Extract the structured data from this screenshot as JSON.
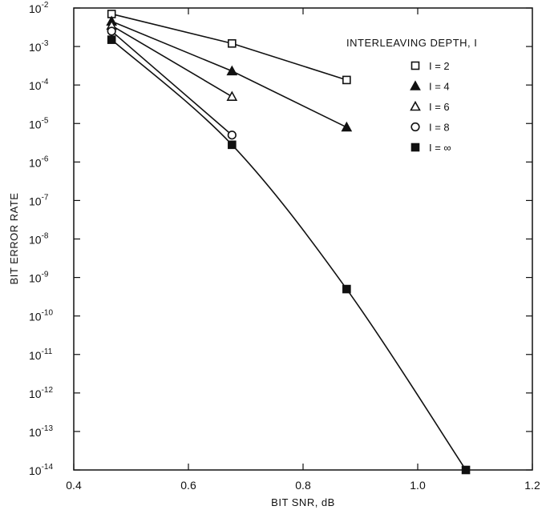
{
  "chart_data": {
    "type": "line",
    "xlabel": "BIT SNR, dB",
    "ylabel": "BIT ERROR RATE",
    "xlim": [
      0.4,
      1.2
    ],
    "ylim_exponent": [
      -14,
      -2
    ],
    "y_scale": "log",
    "grid": false,
    "legend": {
      "title": "INTERLEAVING DEPTH, I",
      "placement": "top-right"
    },
    "x_ticks": [
      "0.4",
      "0.6",
      "0.8",
      "1.0",
      "1.2"
    ],
    "x_tick_values": [
      0.4,
      0.6,
      0.8,
      1.0,
      1.2
    ],
    "y_ticks": [
      {
        "base": "10",
        "exp": "-2"
      },
      {
        "base": "10",
        "exp": "-3"
      },
      {
        "base": "10",
        "exp": "-4"
      },
      {
        "base": "10",
        "exp": "-5"
      },
      {
        "base": "10",
        "exp": "-6"
      },
      {
        "base": "10",
        "exp": "-7"
      },
      {
        "base": "10",
        "exp": "-8"
      },
      {
        "base": "10",
        "exp": "-9"
      },
      {
        "base": "10",
        "exp": "-10"
      },
      {
        "base": "10",
        "exp": "-11"
      },
      {
        "base": "10",
        "exp": "-12"
      },
      {
        "base": "10",
        "exp": "-13"
      },
      {
        "base": "10",
        "exp": "-14"
      }
    ],
    "series": [
      {
        "name": "I = 2",
        "marker": "square-open",
        "x": [
          0.466,
          0.676,
          0.876
        ],
        "y": [
          0.007,
          0.0012,
          0.000135
        ]
      },
      {
        "name": "I = 4",
        "marker": "triangle-filled",
        "x": [
          0.466,
          0.676,
          0.876
        ],
        "y": [
          0.0045,
          0.00023,
          8e-06
        ]
      },
      {
        "name": "I = 6",
        "marker": "triangle-open",
        "x": [
          0.466,
          0.676
        ],
        "y": [
          0.0035,
          5e-05
        ]
      },
      {
        "name": "I = 8",
        "marker": "circle-open",
        "x": [
          0.466,
          0.676
        ],
        "y": [
          0.0025,
          5e-06
        ]
      },
      {
        "name": "I = ∞",
        "marker": "square-filled",
        "x": [
          0.466,
          0.676,
          0.876,
          1.084
        ],
        "y": [
          0.0015,
          2.8e-06,
          5e-10,
          1e-14
        ]
      }
    ]
  }
}
